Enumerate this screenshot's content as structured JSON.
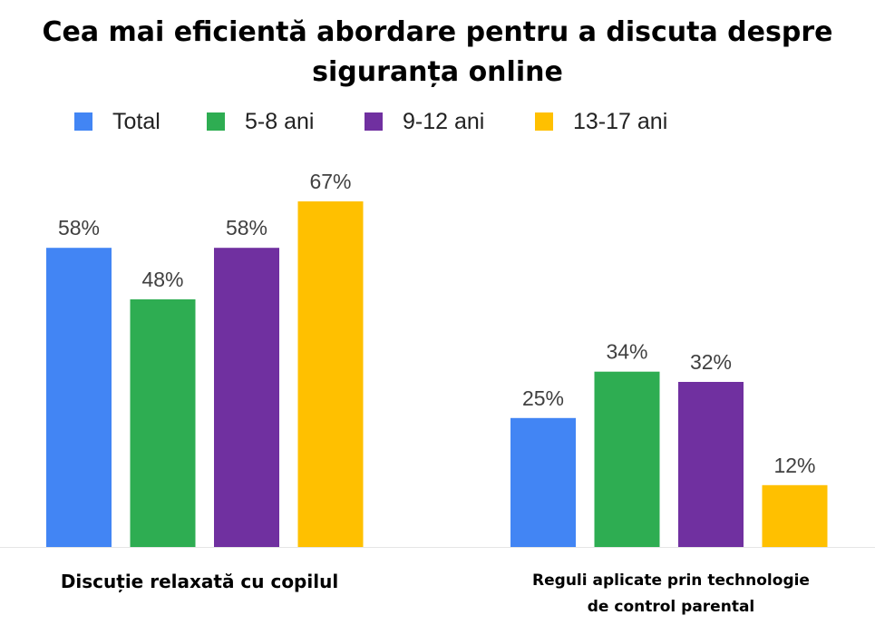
{
  "chart_data": {
    "type": "bar",
    "title": [
      "Cea mai eficientă abordare pentru a discuta despre",
      "siguranța online"
    ],
    "categories": [
      "Discuție relaxată cu copilul",
      "Reguli aplicate prin technologie de control parental"
    ],
    "category_lines": [
      [
        "Discuție relaxată cu copilul"
      ],
      [
        "Reguli aplicate prin technologie",
        "de control parental"
      ]
    ],
    "series": [
      {
        "name": "Total",
        "values": [
          58,
          25
        ],
        "labels": [
          "58%",
          "25%"
        ],
        "color": "#4285F4"
      },
      {
        "name": "5-8 ani",
        "values": [
          48,
          34
        ],
        "labels": [
          "48%",
          "34%"
        ],
        "color": "#2EAD52"
      },
      {
        "name": "9-12 ani",
        "values": [
          58,
          32
        ],
        "labels": [
          "58%",
          "32%"
        ],
        "color": "#7030A0"
      },
      {
        "name": "13-17 ani",
        "values": [
          67,
          12
        ],
        "labels": [
          "67%",
          "12%"
        ],
        "color": "#FFC000"
      }
    ],
    "legend_position": "top",
    "grid": false,
    "ylim": [
      0,
      67
    ]
  }
}
